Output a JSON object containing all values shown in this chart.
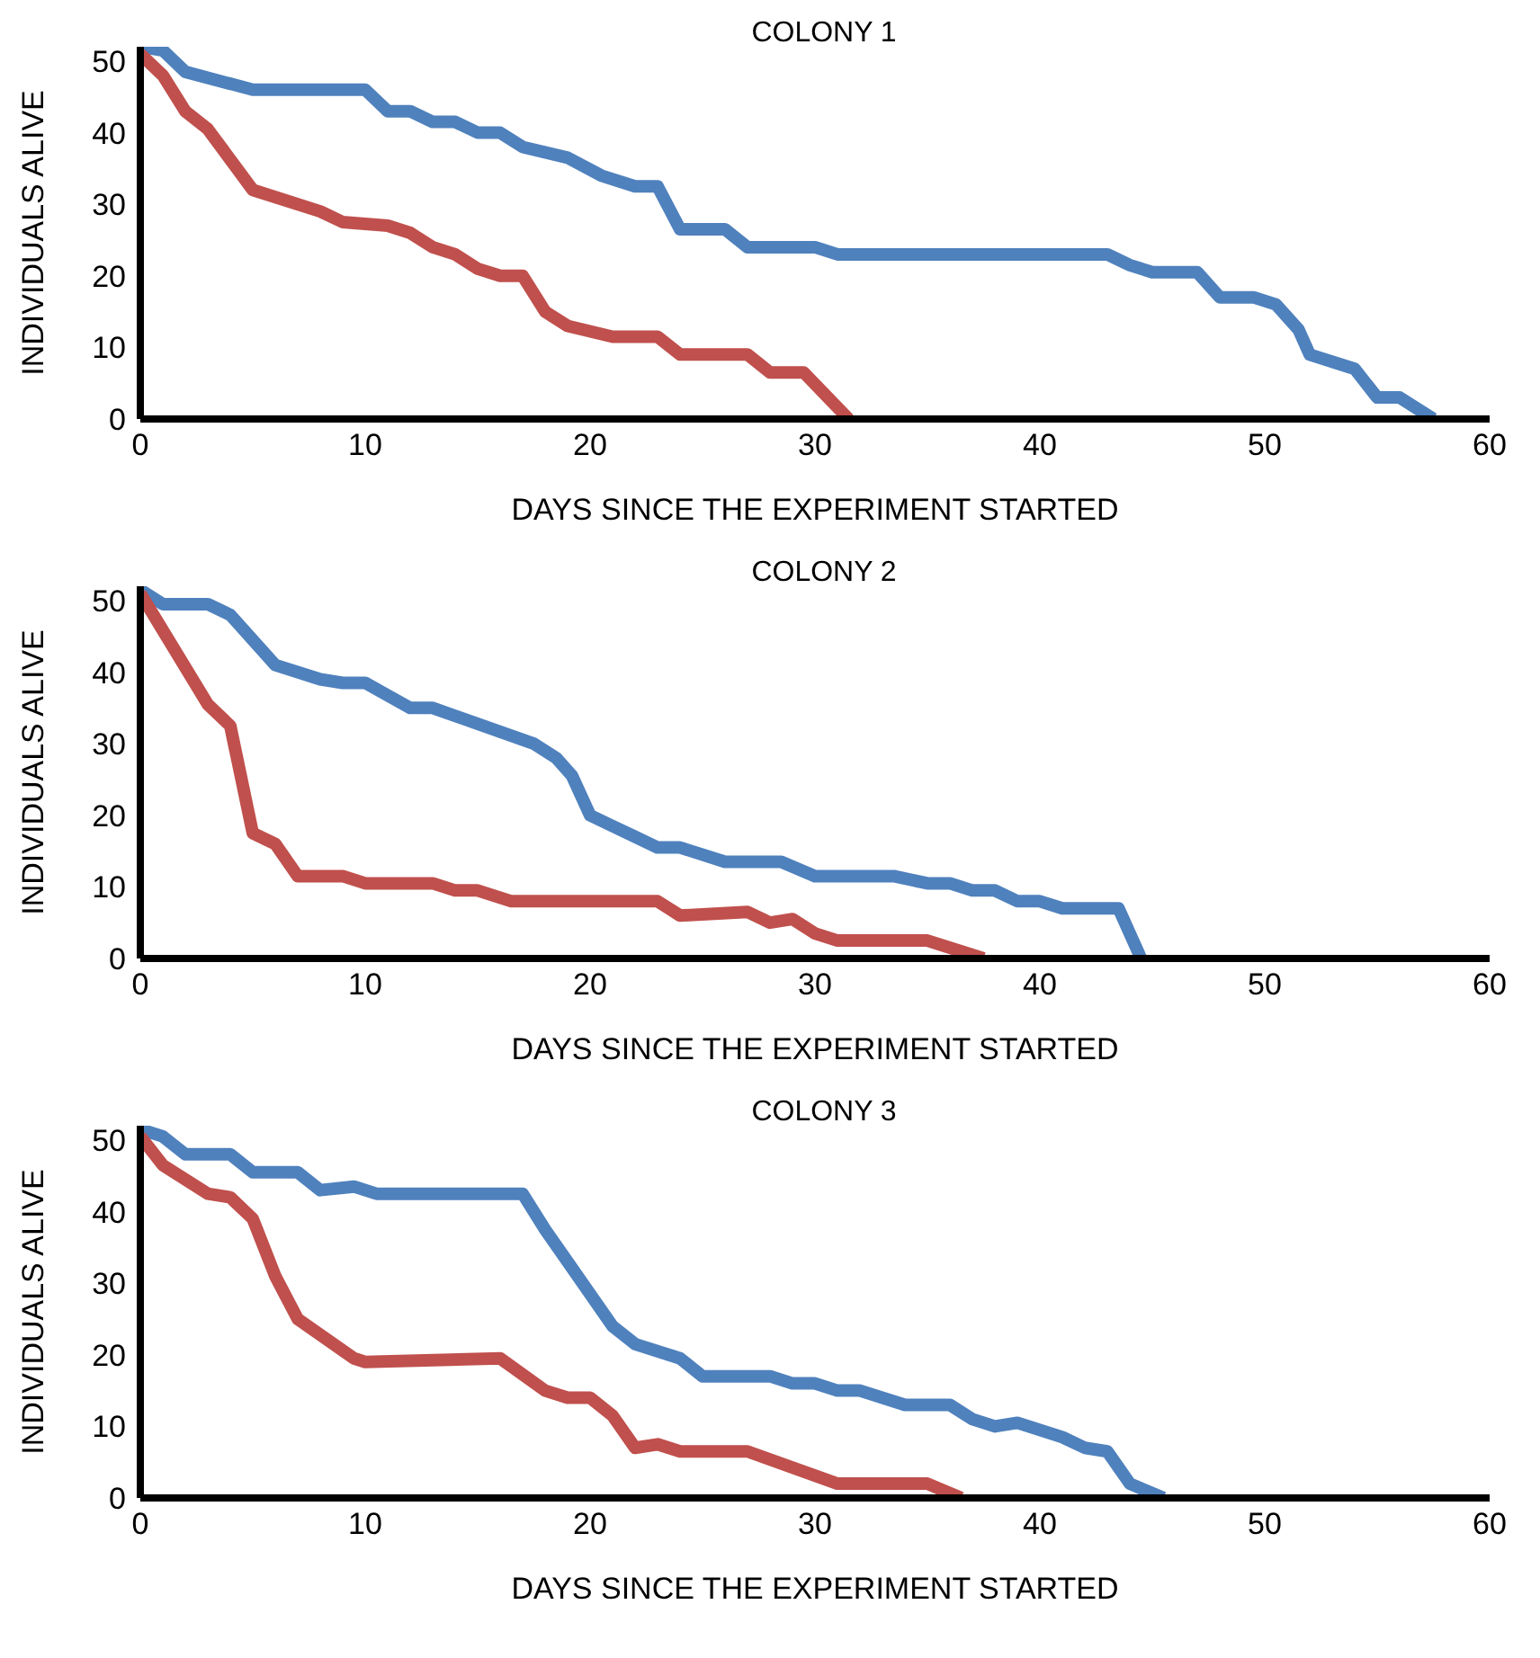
{
  "chart_data": [
    {
      "type": "line",
      "title": "COLONY 1",
      "xlabel": "DAYS SINCE THE EXPERIMENT STARTED",
      "ylabel": "INDIVIDUALS ALIVE",
      "xlim": [
        0,
        60
      ],
      "xticks": [
        0,
        10,
        20,
        30,
        40,
        50,
        60
      ],
      "ylim": [
        0,
        52
      ],
      "yticks": [
        0,
        10,
        20,
        30,
        40,
        50
      ],
      "marker": "none",
      "line_style": "solid",
      "series": [
        {
          "color": "#4f81bd",
          "x": [
            0,
            1,
            2,
            5,
            10,
            11,
            12,
            13,
            14,
            15,
            16,
            17,
            19,
            20.5,
            22,
            23,
            24,
            26,
            27,
            30,
            31,
            43,
            44,
            45,
            47,
            48,
            49.5,
            50.5,
            51.5,
            52,
            54,
            55,
            56,
            57.5
          ],
          "values": [
            52,
            51.5,
            48.5,
            46,
            46,
            43,
            43,
            41.5,
            41.5,
            40,
            40,
            38,
            36.5,
            34,
            32.5,
            32.5,
            26.5,
            26.5,
            24,
            24,
            23,
            23,
            21.5,
            20.5,
            20.5,
            17,
            17,
            16,
            12.5,
            9,
            7,
            3,
            3,
            0
          ]
        },
        {
          "color": "#c0504d",
          "x": [
            0,
            1,
            2,
            3,
            5,
            8,
            9,
            11,
            12,
            13,
            14,
            15,
            16,
            17,
            18,
            19,
            21,
            23,
            24,
            27,
            28,
            29.5,
            31.5
          ],
          "values": [
            51,
            48,
            43,
            40.5,
            32,
            29,
            27.5,
            27,
            26,
            24,
            23,
            21,
            20,
            20,
            15,
            13,
            11.5,
            11.5,
            9,
            9,
            6.5,
            6.5,
            0
          ]
        }
      ]
    },
    {
      "type": "line",
      "title": "COLONY 2",
      "xlabel": "DAYS SINCE THE EXPERIMENT STARTED",
      "ylabel": "INDIVIDUALS ALIVE",
      "xlim": [
        0,
        60
      ],
      "xticks": [
        0,
        10,
        20,
        30,
        40,
        50,
        60
      ],
      "ylim": [
        0,
        52
      ],
      "yticks": [
        0,
        10,
        20,
        30,
        40,
        50
      ],
      "marker": "none",
      "line_style": "solid",
      "series": [
        {
          "color": "#4f81bd",
          "x": [
            0,
            1,
            3,
            4,
            6,
            8,
            9,
            10,
            12,
            13,
            17.5,
            18.5,
            19.2,
            20,
            21,
            22,
            23,
            24,
            26,
            28.5,
            30,
            33.5,
            35,
            36,
            37,
            38,
            39,
            40,
            41,
            43.5,
            44.5
          ],
          "values": [
            51.5,
            49.5,
            49.5,
            48,
            41,
            39,
            38.5,
            38.5,
            35,
            35,
            30,
            28,
            25.5,
            20,
            18.5,
            17,
            15.5,
            15.5,
            13.5,
            13.5,
            11.5,
            11.5,
            10.5,
            10.5,
            9.5,
            9.5,
            8,
            8,
            7,
            7,
            0
          ]
        },
        {
          "color": "#c0504d",
          "x": [
            0,
            3,
            4,
            5,
            6,
            7,
            9,
            10,
            13,
            14,
            15,
            16.5,
            23,
            24,
            27,
            28,
            29,
            30,
            31,
            35,
            37.5
          ],
          "values": [
            51,
            35.5,
            32.5,
            17.5,
            16,
            11.5,
            11.5,
            10.5,
            10.5,
            9.5,
            9.5,
            8,
            8,
            6,
            6.5,
            5,
            5.5,
            3.5,
            2.5,
            2.5,
            0
          ]
        }
      ]
    },
    {
      "type": "line",
      "title": "COLONY 3",
      "xlabel": "DAYS SINCE THE EXPERIMENT STARTED",
      "ylabel": "INDIVIDUALS ALIVE",
      "xlim": [
        0,
        60
      ],
      "xticks": [
        0,
        10,
        20,
        30,
        40,
        50,
        60
      ],
      "ylim": [
        0,
        52
      ],
      "yticks": [
        0,
        10,
        20,
        30,
        40,
        50
      ],
      "marker": "none",
      "line_style": "solid",
      "series": [
        {
          "color": "#4f81bd",
          "x": [
            0,
            1,
            2,
            4,
            5,
            7,
            8,
            9.5,
            10.5,
            17,
            18,
            19,
            21,
            22,
            24,
            25,
            28,
            29,
            30,
            31,
            32,
            34,
            36,
            37,
            38,
            39,
            41,
            42,
            43,
            44,
            45.5
          ],
          "values": [
            51.5,
            50.5,
            48,
            48,
            45.5,
            45.5,
            43,
            43.5,
            42.5,
            42.5,
            37.5,
            33,
            24,
            21.5,
            19.5,
            17,
            17,
            16,
            16,
            15,
            15,
            13,
            13,
            11,
            10,
            10.5,
            8.5,
            7,
            6.5,
            2,
            0
          ]
        },
        {
          "color": "#c0504d",
          "x": [
            0,
            1,
            3,
            4,
            5,
            6,
            7,
            9.5,
            10,
            16,
            18,
            19,
            20,
            21,
            22,
            23,
            24,
            27,
            31,
            35,
            36.5
          ],
          "values": [
            50.5,
            46.5,
            42.5,
            42,
            39,
            31,
            25,
            19.5,
            19,
            19.5,
            15,
            14,
            14,
            11.5,
            7,
            7.5,
            6.5,
            6.5,
            2,
            2,
            0
          ]
        }
      ]
    }
  ]
}
